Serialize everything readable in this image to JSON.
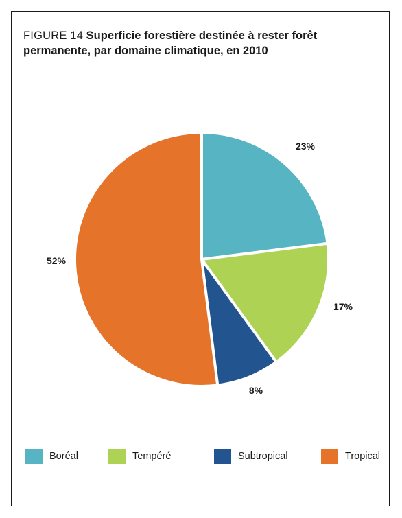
{
  "figure": {
    "label": "FIGURE 14",
    "title": "Superficie forestière destinée à rester forêt permanente, par domaine climatique, en 2010"
  },
  "colors": {
    "boreal": "#57b5c3",
    "tempere": "#aed254",
    "subtropical": "#22548f",
    "tropical": "#e5732a"
  },
  "chart_data": {
    "type": "pie",
    "slices": [
      {
        "label": "Boréal",
        "value": 23,
        "display": "23%",
        "color": "#57b5c3"
      },
      {
        "label": "Tempéré",
        "value": 17,
        "display": "17%",
        "color": "#aed254"
      },
      {
        "label": "Subtropical",
        "value": 8,
        "display": "8%",
        "color": "#22548f"
      },
      {
        "label": "Tropical",
        "value": 52,
        "display": "52%",
        "color": "#e5732a"
      }
    ],
    "legend_position": "bottom"
  }
}
